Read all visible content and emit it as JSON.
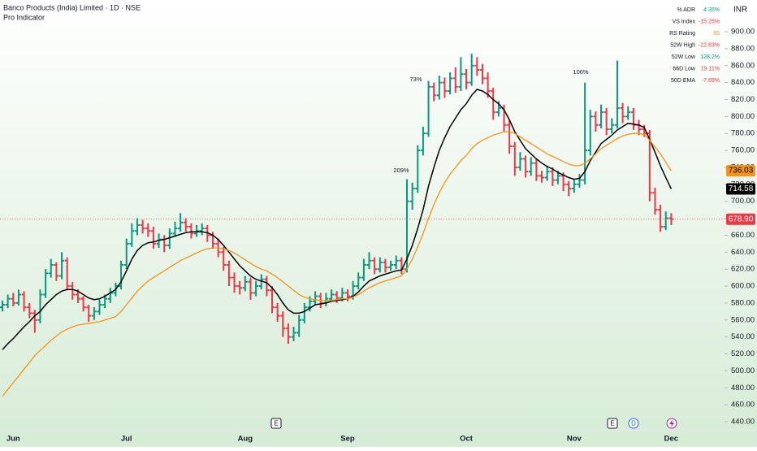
{
  "chart_data": {
    "type": "ohlc",
    "title": "Banco Products (India) Limited · 1D · NSE",
    "subtitle": "Pro Indicator",
    "currency": "INR",
    "colors": {
      "up": "#089981",
      "down": "#f23645"
    },
    "categories": [
      null,
      null,
      "Jun",
      null,
      null,
      null,
      null,
      null,
      null,
      null,
      null,
      null,
      null,
      null,
      null,
      null,
      null,
      null,
      null,
      null,
      null,
      null,
      null,
      "Jul",
      null,
      null,
      null,
      null,
      null,
      null,
      null,
      null,
      null,
      null,
      null,
      null,
      null,
      null,
      null,
      null,
      null,
      null,
      null,
      null,
      null,
      "Aug",
      null,
      null,
      null,
      null,
      null,
      null,
      null,
      null,
      null,
      null,
      null,
      null,
      null,
      null,
      null,
      null,
      null,
      null,
      "Sep",
      null,
      null,
      null,
      null,
      null,
      null,
      null,
      null,
      null,
      null,
      null,
      null,
      null,
      null,
      null,
      null,
      null,
      null,
      null,
      null,
      null,
      "Oct",
      null,
      null,
      null,
      null,
      null,
      null,
      null,
      null,
      null,
      null,
      null,
      null,
      null,
      null,
      null,
      null,
      null,
      null,
      null,
      "Nov",
      null,
      null,
      null,
      null,
      null,
      null,
      null,
      null,
      null,
      null,
      null,
      null,
      null,
      null,
      null,
      null,
      null,
      "Dec"
    ],
    "ohlc": [
      [
        575,
        583,
        570,
        578
      ],
      [
        578,
        590,
        574,
        585
      ],
      [
        585,
        592,
        576,
        580
      ],
      [
        580,
        596,
        577,
        590
      ],
      [
        590,
        594,
        570,
        575
      ],
      [
        575,
        580,
        562,
        568
      ],
      [
        568,
        572,
        545,
        560
      ],
      [
        560,
        596,
        556,
        590
      ],
      [
        590,
        620,
        586,
        615
      ],
      [
        615,
        632,
        610,
        625
      ],
      [
        625,
        628,
        606,
        612
      ],
      [
        612,
        640,
        608,
        630
      ],
      [
        630,
        634,
        595,
        600
      ],
      [
        600,
        605,
        584,
        590
      ],
      [
        590,
        596,
        580,
        585
      ],
      [
        585,
        588,
        570,
        575
      ],
      [
        575,
        578,
        558,
        565
      ],
      [
        565,
        575,
        560,
        570
      ],
      [
        570,
        584,
        566,
        578
      ],
      [
        578,
        590,
        574,
        585
      ],
      [
        585,
        598,
        580,
        592
      ],
      [
        592,
        604,
        588,
        600
      ],
      [
        600,
        630,
        596,
        625
      ],
      [
        625,
        656,
        620,
        650
      ],
      [
        650,
        674,
        646,
        665
      ],
      [
        665,
        680,
        660,
        672
      ],
      [
        672,
        678,
        662,
        668
      ],
      [
        668,
        674,
        658,
        665
      ],
      [
        665,
        670,
        644,
        650
      ],
      [
        650,
        662,
        645,
        655
      ],
      [
        655,
        660,
        640,
        648
      ],
      [
        648,
        668,
        644,
        662
      ],
      [
        662,
        676,
        658,
        668
      ],
      [
        668,
        686,
        664,
        675
      ],
      [
        675,
        680,
        664,
        670
      ],
      [
        670,
        674,
        656,
        662
      ],
      [
        662,
        672,
        658,
        665
      ],
      [
        665,
        674,
        660,
        668
      ],
      [
        668,
        672,
        652,
        660
      ],
      [
        660,
        664,
        644,
        650
      ],
      [
        650,
        656,
        634,
        640
      ],
      [
        640,
        646,
        618,
        625
      ],
      [
        625,
        630,
        600,
        610
      ],
      [
        610,
        616,
        592,
        600
      ],
      [
        600,
        606,
        590,
        598
      ],
      [
        598,
        612,
        594,
        605
      ],
      [
        605,
        610,
        584,
        592
      ],
      [
        592,
        606,
        588,
        600
      ],
      [
        600,
        614,
        596,
        608
      ],
      [
        608,
        612,
        588,
        595
      ],
      [
        595,
        600,
        568,
        575
      ],
      [
        575,
        580,
        558,
        565
      ],
      [
        565,
        570,
        540,
        550
      ],
      [
        550,
        556,
        532,
        540
      ],
      [
        540,
        552,
        535,
        545
      ],
      [
        545,
        566,
        540,
        560
      ],
      [
        560,
        580,
        556,
        575
      ],
      [
        575,
        588,
        570,
        582
      ],
      [
        582,
        594,
        578,
        588
      ],
      [
        588,
        592,
        574,
        580
      ],
      [
        580,
        592,
        576,
        585
      ],
      [
        585,
        596,
        582,
        590
      ],
      [
        590,
        594,
        580,
        586
      ],
      [
        586,
        598,
        582,
        592
      ],
      [
        592,
        596,
        582,
        588
      ],
      [
        588,
        606,
        584,
        600
      ],
      [
        600,
        616,
        596,
        610
      ],
      [
        610,
        632,
        606,
        625
      ],
      [
        625,
        640,
        620,
        630
      ],
      [
        630,
        634,
        614,
        620
      ],
      [
        620,
        634,
        616,
        628
      ],
      [
        628,
        632,
        616,
        622
      ],
      [
        622,
        630,
        618,
        625
      ],
      [
        625,
        636,
        620,
        630
      ],
      [
        630,
        634,
        614,
        620
      ],
      [
        620,
        726,
        616,
        700
      ],
      [
        700,
        722,
        690,
        715
      ],
      [
        715,
        766,
        710,
        760
      ],
      [
        760,
        788,
        754,
        780
      ],
      [
        780,
        842,
        776,
        835
      ],
      [
        835,
        840,
        818,
        825
      ],
      [
        825,
        848,
        820,
        840
      ],
      [
        840,
        846,
        822,
        830
      ],
      [
        830,
        852,
        826,
        845
      ],
      [
        845,
        858,
        828,
        835
      ],
      [
        835,
        870,
        830,
        850
      ],
      [
        850,
        856,
        832,
        840
      ],
      [
        840,
        874,
        836,
        860
      ],
      [
        860,
        870,
        848,
        855
      ],
      [
        855,
        862,
        838,
        845
      ],
      [
        845,
        852,
        822,
        830
      ],
      [
        830,
        834,
        796,
        805
      ],
      [
        805,
        818,
        800,
        810
      ],
      [
        810,
        814,
        782,
        790
      ],
      [
        790,
        796,
        756,
        765
      ],
      [
        765,
        770,
        730,
        740
      ],
      [
        740,
        758,
        736,
        750
      ],
      [
        750,
        754,
        728,
        735
      ],
      [
        735,
        752,
        730,
        745
      ],
      [
        745,
        750,
        724,
        730
      ],
      [
        730,
        736,
        722,
        728
      ],
      [
        728,
        742,
        724,
        735
      ],
      [
        735,
        740,
        718,
        725
      ],
      [
        725,
        736,
        720,
        730
      ],
      [
        730,
        734,
        712,
        720
      ],
      [
        720,
        724,
        706,
        715
      ],
      [
        715,
        726,
        710,
        720
      ],
      [
        720,
        732,
        716,
        725
      ],
      [
        725,
        840,
        720,
        760
      ],
      [
        760,
        808,
        754,
        800
      ],
      [
        800,
        806,
        782,
        790
      ],
      [
        790,
        814,
        786,
        805
      ],
      [
        805,
        810,
        778,
        785
      ],
      [
        785,
        798,
        780,
        790
      ],
      [
        790,
        866,
        786,
        810
      ],
      [
        810,
        816,
        792,
        800
      ],
      [
        800,
        812,
        796,
        805
      ],
      [
        805,
        810,
        784,
        790
      ],
      [
        790,
        796,
        778,
        785
      ],
      [
        785,
        790,
        776,
        780
      ],
      [
        780,
        784,
        700,
        710
      ],
      [
        710,
        716,
        684,
        690
      ],
      [
        690,
        696,
        664,
        670
      ],
      [
        670,
        688,
        666,
        680
      ],
      [
        680,
        686,
        672,
        678.9
      ]
    ],
    "last_price_label": "678.90",
    "series": [
      {
        "color": "#000000",
        "last_label": "714.58",
        "values": [
          525,
          532,
          538,
          545,
          552,
          558,
          565,
          570,
          578,
          584,
          590,
          594,
          596,
          596,
          594,
          590,
          586,
          584,
          585,
          588,
          592,
          596,
          605,
          618,
          632,
          642,
          648,
          651,
          652,
          654,
          655,
          657,
          659,
          661,
          663,
          664,
          664,
          664,
          663,
          660,
          655,
          648,
          640,
          632,
          624,
          618,
          612,
          608,
          606,
          604,
          598,
          590,
          580,
          572,
          568,
          568,
          570,
          574,
          578,
          579,
          580,
          582,
          583,
          584,
          585,
          588,
          593,
          600,
          606,
          609,
          612,
          614,
          616,
          618,
          619,
          632,
          648,
          668,
          690,
          718,
          740,
          760,
          775,
          788,
          798,
          808,
          815,
          825,
          832,
          830,
          826,
          820,
          815,
          808,
          796,
          782,
          772,
          762,
          756,
          750,
          745,
          741,
          738,
          734,
          731,
          728,
          726,
          727,
          735,
          748,
          758,
          768,
          773,
          778,
          784,
          788,
          792,
          791,
          790,
          787,
          773,
          758,
          742,
          728,
          714.58
        ]
      },
      {
        "color": "#f7931a",
        "last_label": "736.03",
        "values": [
          470,
          478,
          486,
          494,
          502,
          510,
          518,
          524,
          530,
          536,
          541,
          546,
          549,
          552,
          554,
          555,
          556,
          557,
          558,
          560,
          562,
          564,
          570,
          578,
          586,
          594,
          600,
          606,
          610,
          614,
          618,
          622,
          626,
          630,
          633,
          636,
          639,
          642,
          644,
          645,
          645,
          644,
          642,
          639,
          635,
          631,
          627,
          623,
          620,
          618,
          614,
          610,
          605,
          600,
          595,
          590,
          587,
          585,
          584,
          583,
          583,
          583,
          584,
          585,
          585,
          587,
          590,
          594,
          598,
          601,
          604,
          606,
          608,
          610,
          612,
          620,
          632,
          646,
          662,
          680,
          696,
          710,
          722,
          732,
          740,
          748,
          754,
          762,
          768,
          772,
          775,
          778,
          780,
          782,
          782,
          780,
          776,
          772,
          768,
          764,
          760,
          756,
          753,
          750,
          747,
          744,
          742,
          742,
          745,
          750,
          756,
          762,
          766,
          770,
          774,
          777,
          779,
          780,
          780,
          779,
          772,
          764,
          756,
          746,
          736.03
        ]
      }
    ],
    "ylim": [
      430,
      915
    ],
    "yticks": [
      {
        "value": 440,
        "label": "440.00"
      },
      {
        "value": 460,
        "label": "460.00"
      },
      {
        "value": 480,
        "label": "480.00"
      },
      {
        "value": 500,
        "label": "500.00"
      },
      {
        "value": 520,
        "label": "520.00"
      },
      {
        "value": 540,
        "label": "540.00"
      },
      {
        "value": 560,
        "label": "560.00"
      },
      {
        "value": 580,
        "label": "580.00"
      },
      {
        "value": 600,
        "label": "600.00"
      },
      {
        "value": 620,
        "label": "620.00"
      },
      {
        "value": 640,
        "label": "640.00"
      },
      {
        "value": 660,
        "label": "660.00"
      },
      {
        "value": 680,
        "label": "680.00"
      },
      {
        "value": 700,
        "label": "700.00"
      },
      {
        "value": 720,
        "label": "720.00"
      },
      {
        "value": 740,
        "label": "740.00"
      },
      {
        "value": 760,
        "label": "760.00"
      },
      {
        "value": 780,
        "label": "780.00"
      },
      {
        "value": 800,
        "label": "800.00"
      },
      {
        "value": 820,
        "label": "820.00"
      },
      {
        "value": 840,
        "label": "840.00"
      },
      {
        "value": 860,
        "label": "860.00"
      },
      {
        "value": 880,
        "label": "880.00"
      },
      {
        "value": 900,
        "label": "900.00"
      }
    ],
    "annotations": [
      "73%",
      "209%",
      "106%"
    ],
    "events": [
      "E",
      "E",
      "D"
    ],
    "stats": [
      {
        "label": "% ADR",
        "value": "4.35%",
        "color": "#089981"
      },
      {
        "label": "VS Index",
        "value": "-15.25%",
        "color": "#f23645"
      },
      {
        "label": "RS Rating",
        "value": "65",
        "color": "#f7931a"
      },
      {
        "label": "52W High",
        "value": "-22.83%",
        "color": "#f23645"
      },
      {
        "label": "52W Low",
        "value": "128.2%",
        "color": "#089981"
      },
      {
        "label": "66D Low",
        "value": "19.11%",
        "color": "#f23645"
      },
      {
        "label": "50D EMA",
        "value": "-7.69%",
        "color": "#f23645"
      }
    ]
  }
}
